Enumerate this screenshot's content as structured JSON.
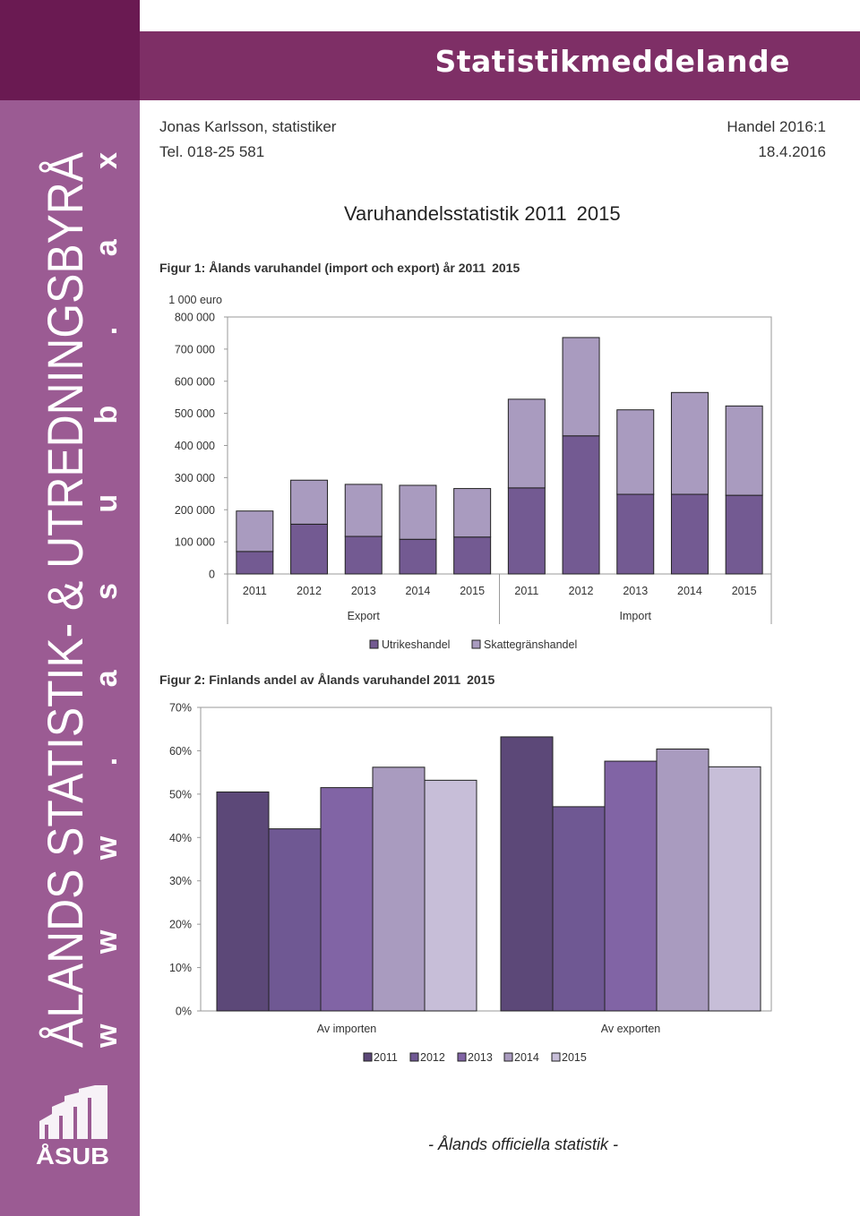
{
  "banner": {
    "title": "Statistikmeddelande"
  },
  "sidebar": {
    "brand_text": "ÅLANDS STATISTIK- & UTREDNINGSBYRÅ",
    "web_text": "w w w . a s u b . a x",
    "logo_text": "ÅSUB"
  },
  "header": {
    "author": "Jonas Karlsson, statistiker",
    "phone": "Tel. 018-25 581",
    "series": "Handel 2016:1",
    "date": "18.4.2016"
  },
  "doc_title": "Varuhandelsstatistik 2011 2015",
  "figure1": {
    "title": "Figur 1: Ålands varuhandel (import och export) år 2011 2015",
    "unit": "1 000 euro"
  },
  "figure2": {
    "title": "Figur 2: Finlands andel av Ålands varuhandel 2011 2015"
  },
  "footer": {
    "text": "- Ålands officiella statistik -"
  },
  "colors": {
    "sidebar": "#9b5b93",
    "banner": "#7e2f66",
    "utrikes": "#735a92",
    "skatte": "#a99bbf"
  },
  "chart_data": [
    {
      "type": "bar",
      "stacked": true,
      "groups": [
        "Export",
        "Import"
      ],
      "categories": [
        "2011",
        "2012",
        "2013",
        "2014",
        "2015",
        "2011",
        "2012",
        "2013",
        "2014",
        "2015"
      ],
      "series": [
        {
          "name": "Utrikeshandel",
          "values": [
            70000,
            155000,
            117000,
            108000,
            115000,
            268000,
            430000,
            248000,
            248000,
            245000
          ]
        },
        {
          "name": "Skattegränshandel",
          "values": [
            126000,
            137000,
            162000,
            168000,
            151000,
            276000,
            306000,
            263000,
            317000,
            278000
          ]
        }
      ],
      "ylim": [
        0,
        800000
      ],
      "yticks": [
        "0",
        "100 000",
        "200 000",
        "300 000",
        "400 000",
        "500 000",
        "600 000",
        "700 000",
        "800 000"
      ],
      "grid": false,
      "legend": "bottom"
    },
    {
      "type": "bar",
      "categories": [
        "Av importen",
        "Av exporten"
      ],
      "series": [
        {
          "name": "2011",
          "values": [
            50.5,
            63.2
          ]
        },
        {
          "name": "2012",
          "values": [
            42.0,
            47.1
          ]
        },
        {
          "name": "2013",
          "values": [
            51.5,
            57.6
          ]
        },
        {
          "name": "2014",
          "values": [
            56.2,
            60.4
          ]
        },
        {
          "name": "2015",
          "values": [
            53.2,
            56.3
          ]
        }
      ],
      "ylim": [
        0,
        70
      ],
      "yticks": [
        "0%",
        "10%",
        "20%",
        "30%",
        "40%",
        "50%",
        "60%",
        "70%"
      ],
      "grid": false,
      "legend": "bottom"
    }
  ]
}
